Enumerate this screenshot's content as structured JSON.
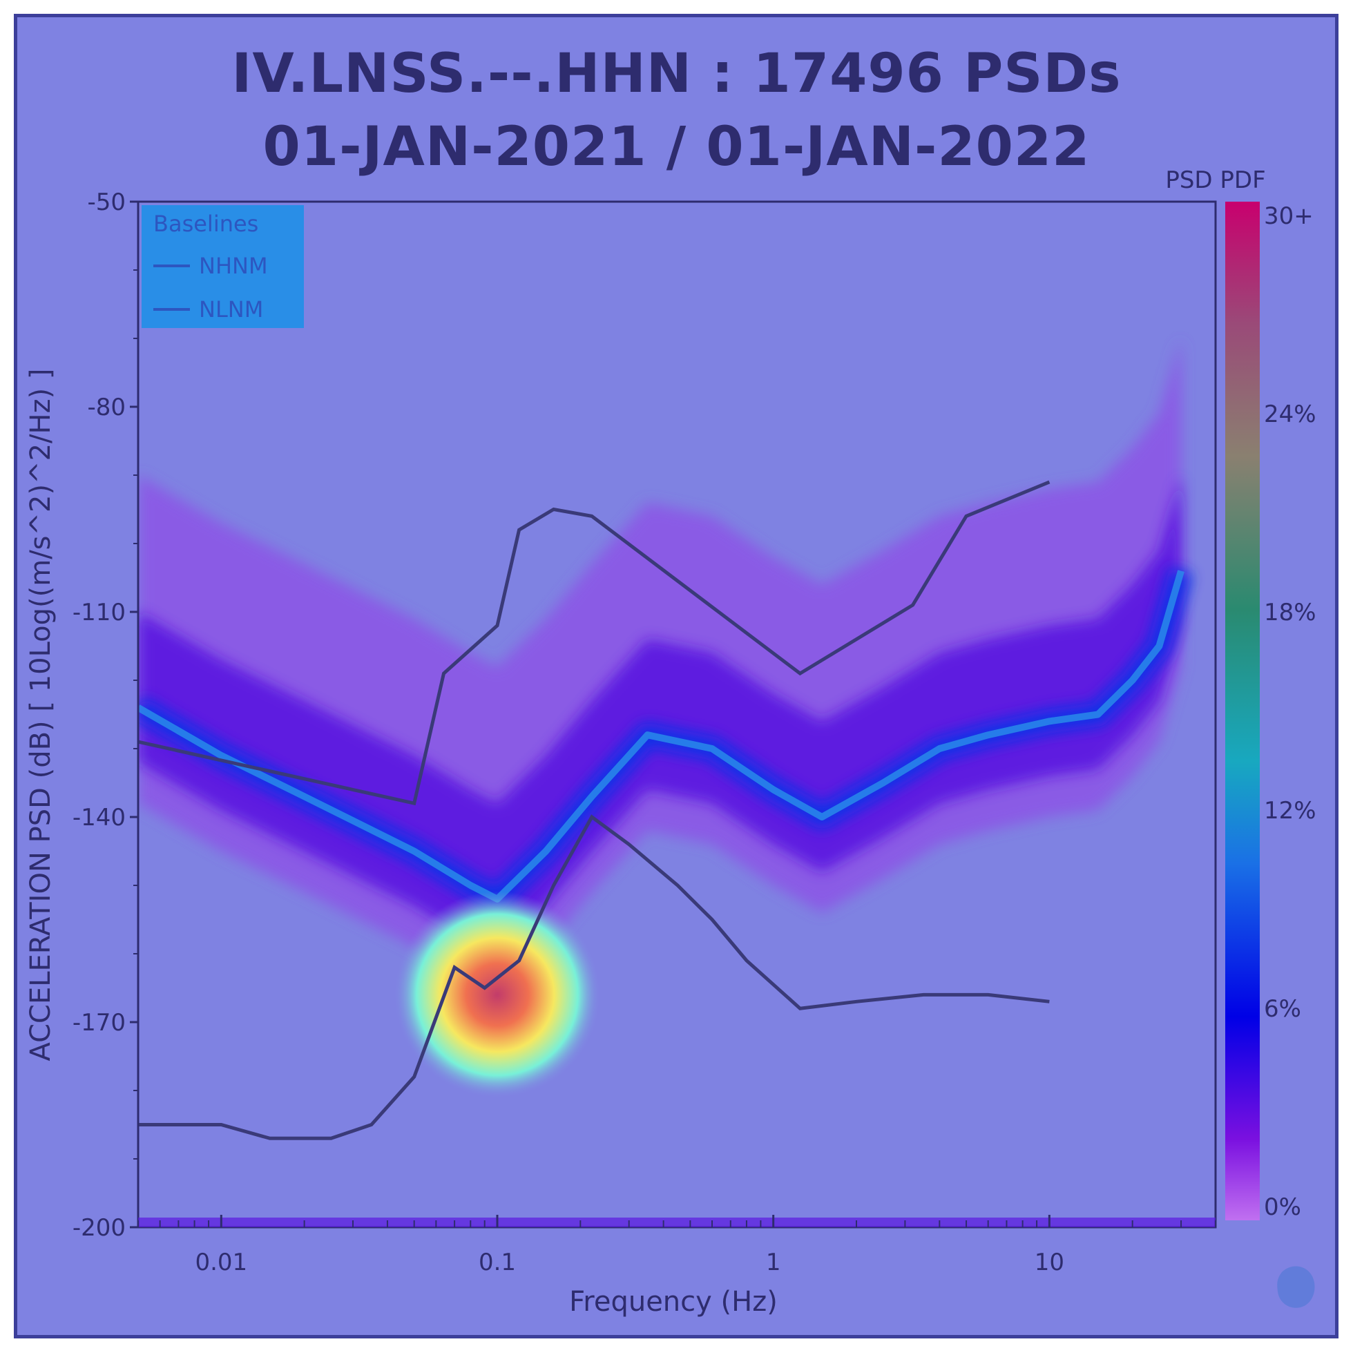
{
  "chart_data": {
    "type": "heatmap",
    "title_line1": "IV.LNSS.--.HHN : 17496 PSDs",
    "title_line2": "01-JAN-2021 / 01-JAN-2022",
    "xlabel": "Frequency (Hz)",
    "ylabel": "ACCELERATION PSD (dB) [ 10Log((m/s^2)^2/Hz) ]",
    "x_scale": "log",
    "xlim": [
      0.005,
      40
    ],
    "ylim": [
      -200,
      -50
    ],
    "x_ticks": [
      {
        "value": 0.01,
        "label": "0.01"
      },
      {
        "value": 0.1,
        "label": "0.1"
      },
      {
        "value": 1,
        "label": "1"
      },
      {
        "value": 10,
        "label": "10"
      }
    ],
    "y_ticks": [
      {
        "value": -50,
        "label": "-50"
      },
      {
        "value": -80,
        "label": "-80"
      },
      {
        "value": -110,
        "label": "-110"
      },
      {
        "value": -140,
        "label": "-140"
      },
      {
        "value": -170,
        "label": "-170"
      },
      {
        "value": -200,
        "label": "-200"
      }
    ],
    "colorbar": {
      "label": "PSD PDF",
      "ticks": [
        "30+",
        "24%",
        "18%",
        "12%",
        "6%",
        "0%"
      ],
      "colors": [
        "#c8006e",
        "#9a4a78",
        "#8a8070",
        "#2a8a70",
        "#1aa0b8",
        "#1a6ee0",
        "#0000e6",
        "#6a00e0",
        "#b060f0"
      ]
    },
    "legend": {
      "title": "Baselines",
      "placement": "top-left",
      "entries": [
        "NHNM",
        "NLNM"
      ]
    },
    "series": [
      {
        "name": "NHNM",
        "x": [
          0.005,
          0.05,
          0.064,
          0.1,
          0.12,
          0.16,
          0.22,
          1.25,
          3.2,
          5.0,
          10.0
        ],
        "y": [
          -129,
          -138,
          -119,
          -112,
          -98,
          -95,
          -96,
          -119,
          -109,
          -96,
          -91
        ]
      },
      {
        "name": "NLNM",
        "x": [
          0.005,
          0.01,
          0.015,
          0.025,
          0.035,
          0.05,
          0.07,
          0.09,
          0.12,
          0.16,
          0.22,
          0.3,
          0.45,
          0.6,
          0.8,
          1.25,
          2.0,
          3.5,
          6.0,
          10.0
        ],
        "y": [
          -185,
          -185,
          -187,
          -187,
          -185,
          -178,
          -162,
          -165,
          -161,
          -150,
          -140,
          -144,
          -150,
          -155,
          -161,
          -168,
          -167,
          -166,
          -166,
          -167
        ]
      }
    ],
    "density_mode": {
      "x": [
        0.005,
        0.01,
        0.02,
        0.05,
        0.08,
        0.1,
        0.15,
        0.22,
        0.35,
        0.6,
        1.0,
        1.5,
        2.5,
        4.0,
        6.0,
        10.0,
        15.0,
        20.0,
        25.0,
        30.0
      ],
      "y": [
        -124,
        -131,
        -137,
        -145,
        -150,
        -152,
        -145,
        -137,
        -128,
        -130,
        -136,
        -140,
        -135,
        -130,
        -128,
        -126,
        -125,
        -120,
        -115,
        -104
      ]
    },
    "hotspot": {
      "x": 0.1,
      "y": -166
    }
  }
}
